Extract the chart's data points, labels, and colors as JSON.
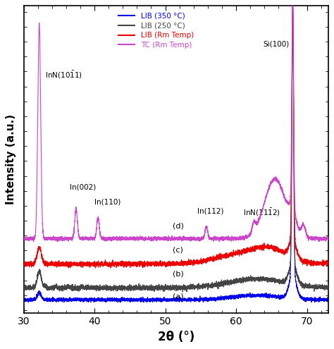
{
  "xlim": [
    30,
    73
  ],
  "ylim_min": 0,
  "ylim_max": 1.0,
  "xlabel": "2θ (°)",
  "ylabel": "Intensity (a.u.)",
  "colors": {
    "blue": "#0000ee",
    "black": "#444444",
    "red": "#ee0000",
    "magenta": "#cc44cc"
  },
  "legend": [
    {
      "label": "LIB (350 °C)",
      "color": "#0000ee"
    },
    {
      "label": "LIB (250 °C)",
      "color": "#444444"
    },
    {
      "label": "LIB (Rm Temp)",
      "color": "#ee0000"
    },
    {
      "label": "TC (Rm Temp)",
      "color": "#cc44cc"
    }
  ],
  "xticks": [
    30,
    40,
    50,
    60,
    70
  ],
  "noise_seed": 42
}
